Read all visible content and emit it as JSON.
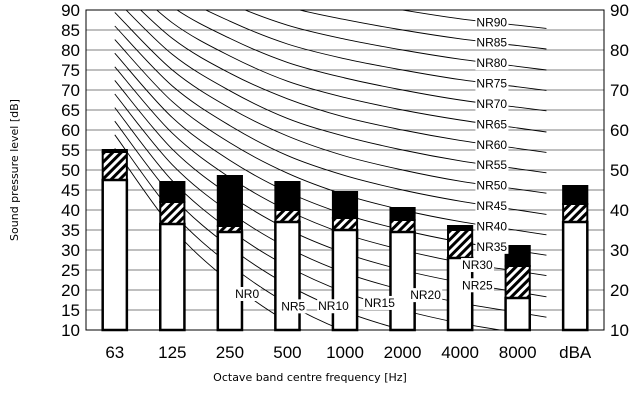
{
  "chart_data": {
    "type": "bar",
    "xlabel": "Octave band centre frequency [Hz]",
    "ylabel": "Sound pressure level [dB]",
    "ylim": [
      10,
      90
    ],
    "yticks_left": [
      "10",
      "15",
      "20",
      "25",
      "30",
      "35",
      "40",
      "45",
      "50",
      "55",
      "60",
      "65",
      "70",
      "75",
      "80",
      "85",
      "90"
    ],
    "yticks_right": [
      "10",
      "20",
      "30",
      "40",
      "50",
      "60",
      "70",
      "80",
      "90"
    ],
    "grid": "horizontal",
    "categories": [
      "63",
      "125",
      "250",
      "500",
      "1000",
      "2000",
      "4000",
      "8000",
      "dBA"
    ],
    "series": [
      {
        "values": [
          47.5,
          36.5,
          34.5,
          37,
          35,
          34.5,
          28,
          18,
          37
        ]
      },
      {
        "values": [
          54.5,
          42,
          36,
          40,
          38,
          37.5,
          35,
          26,
          41.5
        ]
      },
      {
        "values": [
          55,
          47,
          48.5,
          47,
          44.5,
          40.5,
          36,
          31,
          46
        ]
      }
    ],
    "nr_curves": [
      {
        "label": "NR0",
        "values": [
          55.4,
          35.5,
          22.0,
          12.0,
          4.8,
          0.0,
          -3.5,
          -6.1
        ]
      },
      {
        "label": "NR5",
        "values": [
          58.8,
          39.4,
          26.3,
          16.6,
          9.7,
          5.0,
          1.6,
          -1.0
        ]
      },
      {
        "label": "NR10",
        "values": [
          62.2,
          43.4,
          30.7,
          21.3,
          14.6,
          10.0,
          6.6,
          4.2
        ]
      },
      {
        "label": "NR15",
        "values": [
          65.6,
          47.3,
          35.0,
          25.9,
          19.4,
          15.0,
          11.7,
          9.3
        ]
      },
      {
        "label": "NR20",
        "values": [
          69.0,
          51.3,
          39.4,
          30.6,
          24.3,
          20.0,
          16.8,
          14.4
        ]
      },
      {
        "label": "NR25",
        "values": [
          72.4,
          55.2,
          43.7,
          35.2,
          29.2,
          25.0,
          21.9,
          19.5
        ]
      },
      {
        "label": "NR30",
        "values": [
          75.8,
          59.2,
          48.1,
          39.9,
          34.0,
          30.0,
          26.9,
          24.7
        ]
      },
      {
        "label": "NR35",
        "values": [
          79.2,
          63.1,
          52.4,
          44.5,
          38.9,
          35.0,
          32.0,
          29.8
        ]
      },
      {
        "label": "NR40",
        "values": [
          82.6,
          67.1,
          56.8,
          49.2,
          43.8,
          40.0,
          37.1,
          34.9
        ]
      },
      {
        "label": "NR45",
        "values": [
          86.0,
          71.0,
          61.1,
          53.6,
          48.6,
          45.0,
          42.2,
          40.0
        ]
      },
      {
        "label": "NR50",
        "values": [
          89.4,
          75.0,
          65.5,
          58.5,
          53.5,
          50.0,
          47.2,
          45.2
        ]
      },
      {
        "label": "NR55",
        "values": [
          92.9,
          78.9,
          69.8,
          62.9,
          58.4,
          55.0,
          52.3,
          50.3
        ]
      },
      {
        "label": "NR60",
        "values": [
          96.3,
          82.9,
          74.2,
          67.8,
          63.2,
          60.0,
          57.4,
          55.4
        ]
      },
      {
        "label": "NR65",
        "values": [
          99.7,
          86.8,
          78.5,
          72.2,
          68.1,
          65.0,
          62.5,
          60.5
        ]
      },
      {
        "label": "NR70",
        "values": [
          103.1,
          90.8,
          82.9,
          76.9,
          73.0,
          70.0,
          67.5,
          65.7
        ]
      },
      {
        "label": "NR75",
        "values": [
          106.5,
          94.7,
          87.2,
          81.5,
          77.8,
          75.0,
          72.6,
          70.8
        ]
      },
      {
        "label": "NR80",
        "values": [
          109.9,
          98.7,
          91.6,
          86.2,
          82.7,
          80.0,
          77.7,
          75.9
        ]
      },
      {
        "label": "NR85",
        "values": [
          113.3,
          102.6,
          95.9,
          90.8,
          87.6,
          85.0,
          82.8,
          81.1
        ]
      },
      {
        "label": "NR90",
        "values": [
          116.7,
          106.6,
          100.3,
          95.5,
          92.4,
          90.0,
          87.8,
          86.2
        ]
      }
    ],
    "colors": {
      "bar_fill": "#ffffff",
      "hatch": "#000000",
      "upper": "#000000",
      "curve": "#000000",
      "grid": "#555555"
    }
  }
}
